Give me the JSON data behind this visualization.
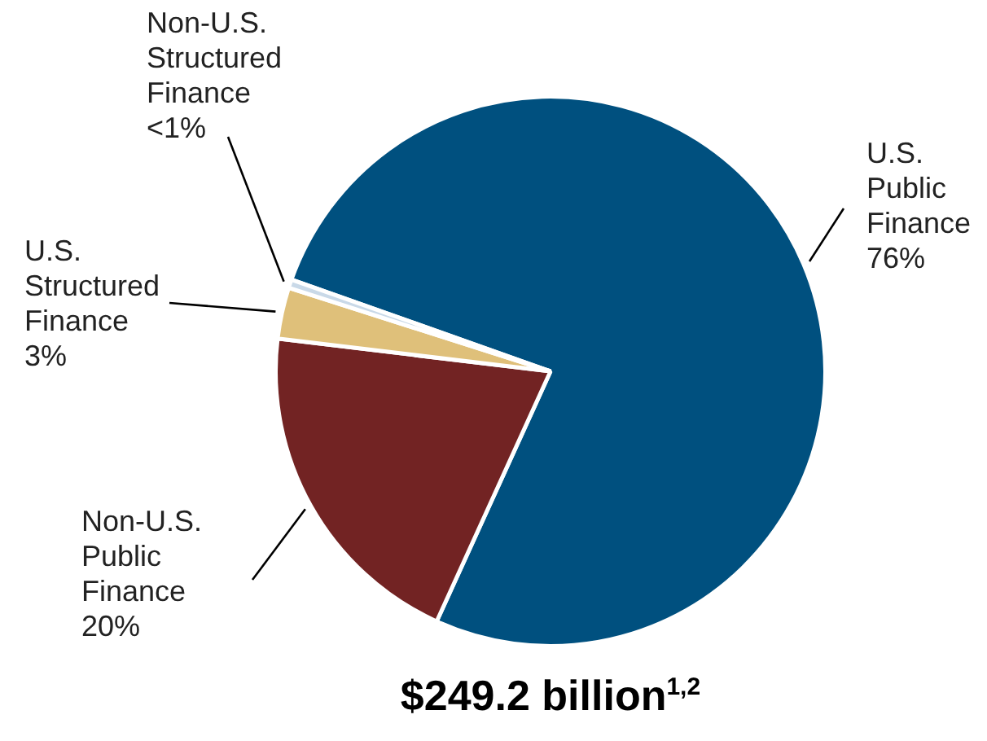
{
  "chart_data": {
    "type": "pie",
    "title": "$249.2 billion$^{1,2}$",
    "categories": [
      "U.S. Public Finance",
      "Non-U.S. Public Finance",
      "U.S. Structured Finance",
      "Non-U.S. Structured Finance"
    ],
    "values": [
      76,
      20,
      3,
      0.5
    ],
    "value_labels": [
      "76%",
      "20%",
      "3%",
      "<1%"
    ],
    "colors": [
      "#00507f",
      "#722323",
      "#dfc07a",
      "#c9d9e8"
    ],
    "legend": false
  }
}
